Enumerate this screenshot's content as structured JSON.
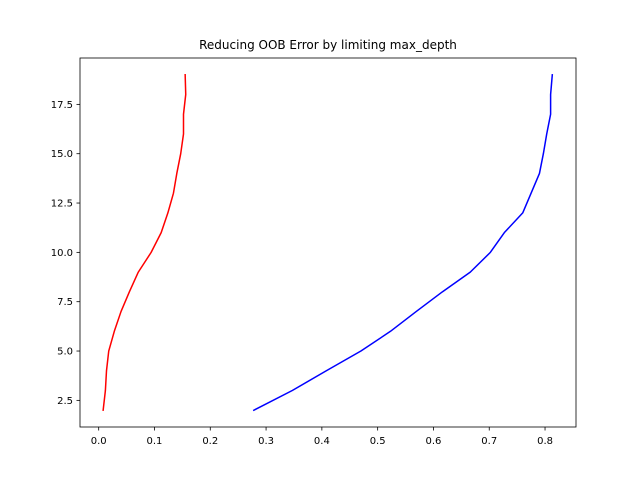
{
  "chart_data": {
    "type": "line",
    "title": "Reducing OOB Error by limiting max_depth",
    "xlabel": "",
    "ylabel": "",
    "xlim": [
      -0.0335,
      0.8555
    ],
    "ylim": [
      1.15,
      19.85
    ],
    "xticks": [
      0.0,
      0.1,
      0.2,
      0.3,
      0.4,
      0.5,
      0.6,
      0.7,
      0.8
    ],
    "xtick_labels": [
      "0.0",
      "0.1",
      "0.2",
      "0.3",
      "0.4",
      "0.5",
      "0.6",
      "0.7",
      "0.8"
    ],
    "yticks": [
      2.5,
      5.0,
      7.5,
      10.0,
      12.5,
      15.0,
      17.5
    ],
    "ytick_labels": [
      "2.5",
      "5.0",
      "7.5",
      "10.0",
      "12.5",
      "15.0",
      "17.5"
    ],
    "grid": false,
    "series": [
      {
        "color": "#ff0000",
        "points": [
          [
            0.008,
            2
          ],
          [
            0.012,
            3
          ],
          [
            0.014,
            4
          ],
          [
            0.018,
            5
          ],
          [
            0.028,
            6
          ],
          [
            0.04,
            7
          ],
          [
            0.055,
            8
          ],
          [
            0.071,
            9
          ],
          [
            0.094,
            10
          ],
          [
            0.112,
            11
          ],
          [
            0.124,
            12
          ],
          [
            0.134,
            13
          ],
          [
            0.14,
            14
          ],
          [
            0.147,
            15
          ],
          [
            0.152,
            16
          ],
          [
            0.152,
            17
          ],
          [
            0.156,
            18
          ],
          [
            0.155,
            19
          ]
        ]
      },
      {
        "color": "#0000ff",
        "points": [
          [
            0.278,
            2
          ],
          [
            0.347,
            3
          ],
          [
            0.408,
            4
          ],
          [
            0.47,
            5
          ],
          [
            0.523,
            6
          ],
          [
            0.569,
            7
          ],
          [
            0.616,
            8
          ],
          [
            0.666,
            9
          ],
          [
            0.702,
            10
          ],
          [
            0.727,
            11
          ],
          [
            0.76,
            12
          ],
          [
            0.775,
            13
          ],
          [
            0.79,
            14
          ],
          [
            0.797,
            15
          ],
          [
            0.803,
            16
          ],
          [
            0.81,
            17
          ],
          [
            0.81,
            18
          ],
          [
            0.813,
            19
          ]
        ]
      }
    ]
  }
}
